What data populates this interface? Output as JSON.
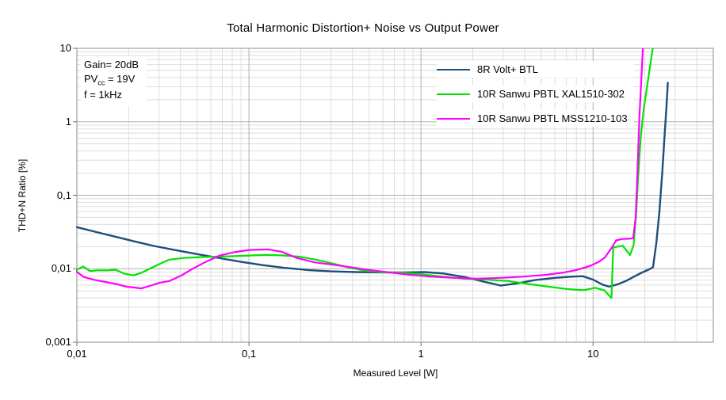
{
  "annotation": {
    "line1": "Gain= 20dB",
    "line2_pre": "PV",
    "line2_sub": "cc",
    "line2_post": " = 19V",
    "line3": "f = 1kHz"
  },
  "chart_data": {
    "type": "line",
    "title": "Total Harmonic Distortion+ Noise vs Output Power",
    "xlabel": "Measured Level [W]",
    "ylabel": "THD+N Ratio [%]",
    "x_axis": {
      "scale": "log",
      "min": 0.01,
      "max": 50,
      "ticks": [
        0.01,
        0.1,
        1,
        10
      ],
      "tick_labels": [
        "0,01",
        "0,1",
        "1",
        "10"
      ]
    },
    "y_axis": {
      "scale": "log",
      "min": 0.001,
      "max": 10,
      "ticks": [
        10,
        1,
        0.1,
        0.01,
        0.001
      ],
      "tick_labels": [
        "10",
        "1",
        "0,1",
        "0,01",
        "0,001"
      ]
    },
    "grid": {
      "major_color": "#b0b0b0",
      "minor_color": "#dddddd",
      "frame_color": "#a0a0a0"
    },
    "legend_position": "top-center",
    "series": [
      {
        "name": "8R Volt+ BTL",
        "color": "#1f4e79",
        "points": [
          [
            0.01,
            0.0368
          ],
          [
            0.013,
            0.0315
          ],
          [
            0.017,
            0.027
          ],
          [
            0.022,
            0.0233
          ],
          [
            0.028,
            0.0204
          ],
          [
            0.037,
            0.018
          ],
          [
            0.05,
            0.0158
          ],
          [
            0.068,
            0.0139
          ],
          [
            0.09,
            0.0124
          ],
          [
            0.12,
            0.0112
          ],
          [
            0.16,
            0.0103
          ],
          [
            0.22,
            0.0096
          ],
          [
            0.3,
            0.0092
          ],
          [
            0.42,
            0.009
          ],
          [
            0.58,
            0.0089
          ],
          [
            0.8,
            0.0089
          ],
          [
            1.05,
            0.009
          ],
          [
            1.35,
            0.0086
          ],
          [
            1.8,
            0.0077
          ],
          [
            2.3,
            0.0067
          ],
          [
            2.9,
            0.0059
          ],
          [
            3.6,
            0.0063
          ],
          [
            4.6,
            0.007
          ],
          [
            6.0,
            0.0075
          ],
          [
            7.5,
            0.0078
          ],
          [
            8.7,
            0.0079
          ],
          [
            10.0,
            0.0071
          ],
          [
            11.3,
            0.0061
          ],
          [
            12.4,
            0.0057
          ],
          [
            13.8,
            0.0061
          ],
          [
            15.5,
            0.0068
          ],
          [
            17.5,
            0.0079
          ],
          [
            19.5,
            0.009
          ],
          [
            21.0,
            0.0097
          ],
          [
            22.3,
            0.0105
          ],
          [
            23.3,
            0.022
          ],
          [
            24.3,
            0.06
          ],
          [
            25.3,
            0.22
          ],
          [
            26.1,
            0.7
          ],
          [
            26.7,
            1.6
          ],
          [
            27.2,
            3.4
          ]
        ]
      },
      {
        "name": "10R Sanwu PBTL XAL1510-302",
        "color": "#00e400",
        "points": [
          [
            0.0098,
            0.0095
          ],
          [
            0.0109,
            0.0107
          ],
          [
            0.0119,
            0.0093
          ],
          [
            0.0132,
            0.0095
          ],
          [
            0.0152,
            0.0095
          ],
          [
            0.0168,
            0.0097
          ],
          [
            0.0187,
            0.0086
          ],
          [
            0.0213,
            0.0081
          ],
          [
            0.0237,
            0.0088
          ],
          [
            0.0277,
            0.0105
          ],
          [
            0.031,
            0.0119
          ],
          [
            0.0344,
            0.0133
          ],
          [
            0.042,
            0.014
          ],
          [
            0.052,
            0.0144
          ],
          [
            0.065,
            0.0146
          ],
          [
            0.08,
            0.0148
          ],
          [
            0.1,
            0.0151
          ],
          [
            0.125,
            0.0154
          ],
          [
            0.155,
            0.0152
          ],
          [
            0.195,
            0.0146
          ],
          [
            0.245,
            0.0133
          ],
          [
            0.305,
            0.0118
          ],
          [
            0.38,
            0.0104
          ],
          [
            0.47,
            0.0094
          ],
          [
            0.6,
            0.0089
          ],
          [
            0.78,
            0.0088
          ],
          [
            1.02,
            0.0084
          ],
          [
            1.35,
            0.0078
          ],
          [
            1.8,
            0.0073
          ],
          [
            2.4,
            0.0071
          ],
          [
            3.2,
            0.0068
          ],
          [
            4.2,
            0.0062
          ],
          [
            5.5,
            0.0057
          ],
          [
            7.0,
            0.0053
          ],
          [
            8.8,
            0.0051
          ],
          [
            10.3,
            0.0055
          ],
          [
            11.6,
            0.0051
          ],
          [
            12.8,
            0.004
          ],
          [
            13.1,
            0.0195
          ],
          [
            14.0,
            0.02
          ],
          [
            14.9,
            0.0205
          ],
          [
            16.4,
            0.0153
          ],
          [
            17.2,
            0.021
          ],
          [
            17.8,
            0.055
          ],
          [
            18.3,
            0.18
          ],
          [
            18.9,
            0.6
          ],
          [
            19.7,
            1.5
          ],
          [
            20.8,
            3.5
          ],
          [
            21.9,
            8.0
          ],
          [
            22.3,
            10.5
          ]
        ]
      },
      {
        "name": "10R Sanwu PBTL MSS1210-103",
        "color": "#ff00ff",
        "points": [
          [
            0.0099,
            0.0092
          ],
          [
            0.011,
            0.0077
          ],
          [
            0.0128,
            0.007
          ],
          [
            0.0147,
            0.0066
          ],
          [
            0.0168,
            0.0062
          ],
          [
            0.0195,
            0.0057
          ],
          [
            0.0237,
            0.0054
          ],
          [
            0.027,
            0.0059
          ],
          [
            0.03,
            0.0064
          ],
          [
            0.0345,
            0.0068
          ],
          [
            0.041,
            0.0082
          ],
          [
            0.047,
            0.01
          ],
          [
            0.0565,
            0.0125
          ],
          [
            0.068,
            0.0152
          ],
          [
            0.082,
            0.0168
          ],
          [
            0.1,
            0.018
          ],
          [
            0.13,
            0.0183
          ],
          [
            0.155,
            0.017
          ],
          [
            0.19,
            0.014
          ],
          [
            0.24,
            0.0122
          ],
          [
            0.31,
            0.0113
          ],
          [
            0.4,
            0.0104
          ],
          [
            0.5,
            0.0096
          ],
          [
            0.65,
            0.0089
          ],
          [
            0.85,
            0.0083
          ],
          [
            1.15,
            0.0078
          ],
          [
            1.55,
            0.0075
          ],
          [
            2.1,
            0.0073
          ],
          [
            2.9,
            0.0075
          ],
          [
            3.9,
            0.0078
          ],
          [
            5.2,
            0.0082
          ],
          [
            6.6,
            0.0088
          ],
          [
            8.0,
            0.0096
          ],
          [
            9.5,
            0.0108
          ],
          [
            10.8,
            0.0124
          ],
          [
            11.7,
            0.0142
          ],
          [
            12.8,
            0.019
          ],
          [
            13.6,
            0.0243
          ],
          [
            14.8,
            0.0254
          ],
          [
            16.2,
            0.0256
          ],
          [
            17.1,
            0.026
          ],
          [
            17.7,
            0.05
          ],
          [
            18.1,
            0.2
          ],
          [
            18.6,
            1.2
          ],
          [
            19.1,
            4.0
          ],
          [
            19.5,
            10.5
          ]
        ]
      }
    ]
  }
}
